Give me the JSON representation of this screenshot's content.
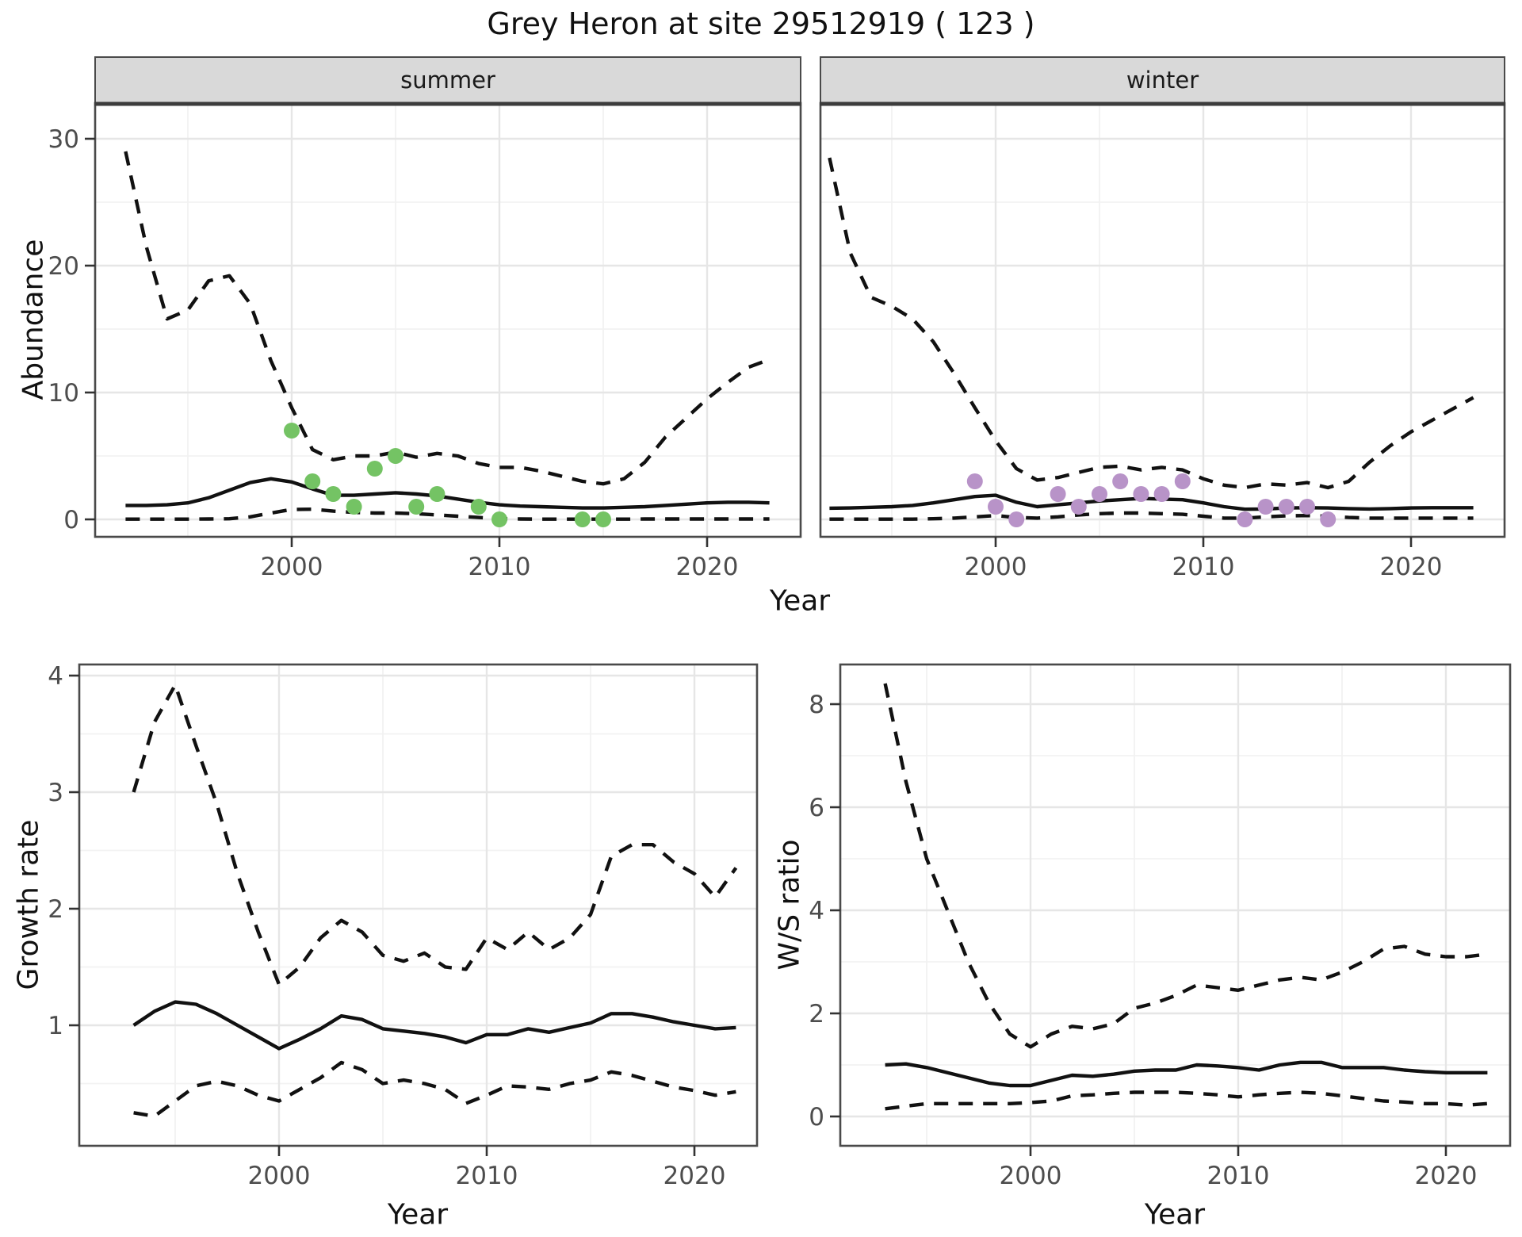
{
  "title": "Grey Heron at site 29512919 ( 123 )",
  "facets": {
    "summer": "summer",
    "winter": "winter"
  },
  "axis_titles": {
    "abundance": "Abundance",
    "year": "Year",
    "growth": "Growth rate",
    "ws": "W/S ratio"
  },
  "colors": {
    "summer_point": "#74C364",
    "winter_point": "#B893C8",
    "line": "#111111",
    "grid_major": "#E6E6E6",
    "grid_minor": "#F2F2F2",
    "panel_border": "#4A4A4A",
    "strip_bg": "#D9D9D9",
    "strip_border": "#4A4A4A",
    "strip_heavy_line": "#3C3C3C",
    "tick_text": "#4D4D4D",
    "tick_mark": "#333333",
    "panel_bg": "#FFFFFF"
  },
  "chart_data": [
    {
      "type": "line",
      "facet": "summer",
      "title": "summer",
      "xlabel": "Year",
      "ylabel": "Abundance",
      "x": [
        1992,
        1993,
        1994,
        1995,
        1996,
        1997,
        1998,
        1999,
        2000,
        2001,
        2002,
        2003,
        2004,
        2005,
        2006,
        2007,
        2008,
        2009,
        2010,
        2011,
        2012,
        2013,
        2014,
        2015,
        2016,
        2017,
        2018,
        2019,
        2020,
        2021,
        2022,
        2023
      ],
      "series": [
        {
          "name": "upper_ci",
          "style": "dashed",
          "values": [
            29,
            21.5,
            15.8,
            16.5,
            18.8,
            19.2,
            17.0,
            12.5,
            8.8,
            5.5,
            4.7,
            5.0,
            5.0,
            5.3,
            4.9,
            5.2,
            5.0,
            4.4,
            4.1,
            4.1,
            3.8,
            3.4,
            3.0,
            2.8,
            3.2,
            4.5,
            6.5,
            8.0,
            9.5,
            10.8,
            12.0,
            12.6
          ]
        },
        {
          "name": "mean",
          "style": "solid",
          "values": [
            1.1,
            1.1,
            1.15,
            1.3,
            1.7,
            2.3,
            2.9,
            3.2,
            2.95,
            2.4,
            1.9,
            1.9,
            2.0,
            2.1,
            2.0,
            1.85,
            1.6,
            1.35,
            1.15,
            1.05,
            1.0,
            0.95,
            0.9,
            0.9,
            0.95,
            1.0,
            1.1,
            1.2,
            1.3,
            1.35,
            1.35,
            1.3
          ]
        },
        {
          "name": "lower_ci",
          "style": "dashed",
          "values": [
            0.02,
            0.02,
            0.02,
            0.02,
            0.03,
            0.05,
            0.2,
            0.5,
            0.78,
            0.8,
            0.65,
            0.55,
            0.5,
            0.5,
            0.45,
            0.35,
            0.25,
            0.15,
            0.05,
            0.03,
            0.02,
            0.02,
            0.02,
            0.02,
            0.02,
            0.03,
            0.03,
            0.03,
            0.03,
            0.03,
            0.03,
            0.03
          ]
        }
      ],
      "points": {
        "name": "observed_counts",
        "color_key": "summer_point",
        "x": [
          2000,
          2001,
          2002,
          2003,
          2004,
          2005,
          2006,
          2007,
          2009,
          2010,
          2014,
          2015
        ],
        "y": [
          7,
          3,
          2,
          1,
          4,
          5,
          1,
          2,
          1,
          0,
          0,
          0
        ]
      },
      "xticks": [
        2000,
        2010,
        2020
      ],
      "xminor": [
        1995,
        2005,
        2015
      ],
      "yticks": [
        0,
        10,
        20,
        30
      ],
      "yminor": [
        5,
        15,
        25
      ],
      "xlim": [
        1990.5,
        2024.5
      ],
      "ylim": [
        -1.4,
        32.8
      ],
      "grid": true
    },
    {
      "type": "line",
      "facet": "winter",
      "title": "winter",
      "xlabel": "Year",
      "ylabel": "Abundance",
      "x": [
        1992,
        1993,
        1994,
        1995,
        1996,
        1997,
        1998,
        1999,
        2000,
        2001,
        2002,
        2003,
        2004,
        2005,
        2006,
        2007,
        2008,
        2009,
        2010,
        2011,
        2012,
        2013,
        2014,
        2015,
        2016,
        2017,
        2018,
        2019,
        2020,
        2021,
        2022,
        2023
      ],
      "series": [
        {
          "name": "upper_ci",
          "style": "dashed",
          "values": [
            28.5,
            21.0,
            17.5,
            16.8,
            15.8,
            14.0,
            11.5,
            8.8,
            6.2,
            4.0,
            3.1,
            3.3,
            3.7,
            4.1,
            4.2,
            3.9,
            4.1,
            3.9,
            3.2,
            2.7,
            2.5,
            2.8,
            2.7,
            2.9,
            2.5,
            3.0,
            4.5,
            5.8,
            6.9,
            7.8,
            8.7,
            9.6
          ]
        },
        {
          "name": "mean",
          "style": "solid",
          "values": [
            0.88,
            0.9,
            0.95,
            1.0,
            1.1,
            1.3,
            1.55,
            1.8,
            1.9,
            1.35,
            1.0,
            1.15,
            1.3,
            1.45,
            1.55,
            1.65,
            1.6,
            1.55,
            1.3,
            1.0,
            0.8,
            0.82,
            0.9,
            0.92,
            0.9,
            0.85,
            0.82,
            0.85,
            0.9,
            0.92,
            0.92,
            0.92
          ]
        },
        {
          "name": "lower_ci",
          "style": "dashed",
          "values": [
            0.02,
            0.02,
            0.02,
            0.02,
            0.02,
            0.05,
            0.1,
            0.2,
            0.3,
            0.15,
            0.1,
            0.2,
            0.35,
            0.45,
            0.5,
            0.5,
            0.45,
            0.4,
            0.25,
            0.1,
            0.1,
            0.2,
            0.28,
            0.3,
            0.25,
            0.15,
            0.1,
            0.1,
            0.1,
            0.1,
            0.1,
            0.1
          ]
        }
      ],
      "points": {
        "name": "observed_counts",
        "color_key": "winter_point",
        "x": [
          1999,
          2000,
          2001,
          2003,
          2004,
          2005,
          2006,
          2007,
          2008,
          2009,
          2012,
          2013,
          2014,
          2015,
          2016
        ],
        "y": [
          3,
          1,
          0,
          2,
          1,
          2,
          3,
          2,
          2,
          3,
          0,
          1,
          1,
          1,
          0
        ]
      },
      "xticks": [
        2000,
        2010,
        2020
      ],
      "xminor": [
        1995,
        2005,
        2015
      ],
      "yticks": [],
      "yminor": [
        5,
        15,
        25
      ],
      "xlim": [
        1991.6,
        2024.5
      ],
      "ylim": [
        -1.4,
        32.8
      ],
      "grid": true
    },
    {
      "type": "line",
      "facet": null,
      "title": "",
      "xlabel": "Year",
      "ylabel": "Growth rate",
      "x": [
        1993,
        1994,
        1995,
        1996,
        1997,
        1998,
        1999,
        2000,
        2001,
        2002,
        2003,
        2004,
        2005,
        2006,
        2007,
        2008,
        2009,
        2010,
        2011,
        2012,
        2013,
        2014,
        2015,
        2016,
        2017,
        2018,
        2019,
        2020,
        2021,
        2022
      ],
      "series": [
        {
          "name": "upper_ci",
          "style": "dashed",
          "values": [
            3.0,
            3.6,
            3.92,
            3.4,
            2.9,
            2.3,
            1.8,
            1.35,
            1.5,
            1.75,
            1.9,
            1.8,
            1.6,
            1.55,
            1.62,
            1.5,
            1.48,
            1.75,
            1.65,
            1.8,
            1.65,
            1.75,
            1.95,
            2.45,
            2.55,
            2.55,
            2.4,
            2.3,
            2.1,
            2.35
          ]
        },
        {
          "name": "mean",
          "style": "solid",
          "values": [
            1.0,
            1.12,
            1.2,
            1.18,
            1.1,
            1.0,
            0.9,
            0.8,
            0.88,
            0.97,
            1.08,
            1.05,
            0.97,
            0.95,
            0.93,
            0.9,
            0.85,
            0.92,
            0.92,
            0.97,
            0.94,
            0.98,
            1.02,
            1.1,
            1.1,
            1.07,
            1.03,
            1.0,
            0.97,
            0.98
          ]
        },
        {
          "name": "lower_ci",
          "style": "dashed",
          "values": [
            0.25,
            0.22,
            0.35,
            0.48,
            0.52,
            0.48,
            0.4,
            0.35,
            0.45,
            0.55,
            0.68,
            0.62,
            0.5,
            0.53,
            0.5,
            0.45,
            0.33,
            0.4,
            0.48,
            0.47,
            0.45,
            0.5,
            0.53,
            0.6,
            0.57,
            0.52,
            0.47,
            0.44,
            0.4,
            0.43
          ]
        }
      ],
      "points": null,
      "xticks": [
        2000,
        2010,
        2020
      ],
      "xminor": [
        1995,
        2005,
        2015
      ],
      "yticks": [
        1,
        2,
        3,
        4
      ],
      "yminor": [
        0.5,
        1.5,
        2.5,
        3.5
      ],
      "xlim": [
        1990.4,
        2023.0
      ],
      "ylim": [
        -0.03,
        4.1
      ],
      "grid": true
    },
    {
      "type": "line",
      "facet": null,
      "title": "",
      "xlabel": "Year",
      "ylabel": "W/S ratio",
      "x": [
        1993,
        1994,
        1995,
        1996,
        1997,
        1998,
        1999,
        2000,
        2001,
        2002,
        2003,
        2004,
        2005,
        2006,
        2007,
        2008,
        2009,
        2010,
        2011,
        2012,
        2013,
        2014,
        2015,
        2016,
        2017,
        2018,
        2019,
        2020,
        2021,
        2022
      ],
      "series": [
        {
          "name": "upper_ci",
          "style": "dashed",
          "values": [
            8.4,
            6.5,
            5.0,
            4.0,
            3.0,
            2.2,
            1.6,
            1.35,
            1.6,
            1.75,
            1.7,
            1.8,
            2.1,
            2.2,
            2.35,
            2.55,
            2.5,
            2.45,
            2.55,
            2.65,
            2.7,
            2.65,
            2.8,
            3.0,
            3.25,
            3.3,
            3.15,
            3.1,
            3.1,
            3.15
          ]
        },
        {
          "name": "mean",
          "style": "solid",
          "values": [
            1.0,
            1.02,
            0.95,
            0.85,
            0.75,
            0.65,
            0.6,
            0.6,
            0.7,
            0.8,
            0.78,
            0.82,
            0.88,
            0.9,
            0.9,
            1.0,
            0.98,
            0.95,
            0.9,
            1.0,
            1.05,
            1.05,
            0.95,
            0.95,
            0.95,
            0.9,
            0.87,
            0.85,
            0.85,
            0.85
          ]
        },
        {
          "name": "lower_ci",
          "style": "dashed",
          "values": [
            0.15,
            0.2,
            0.25,
            0.25,
            0.25,
            0.25,
            0.25,
            0.27,
            0.3,
            0.4,
            0.42,
            0.45,
            0.47,
            0.47,
            0.47,
            0.45,
            0.42,
            0.38,
            0.42,
            0.45,
            0.47,
            0.45,
            0.4,
            0.35,
            0.3,
            0.28,
            0.25,
            0.25,
            0.22,
            0.25
          ]
        }
      ],
      "points": null,
      "xticks": [
        2000,
        2010,
        2020
      ],
      "xminor": [
        1995,
        2005,
        2015
      ],
      "yticks": [
        0,
        2,
        4,
        6,
        8
      ],
      "yminor": [
        1,
        3,
        5,
        7
      ],
      "xlim": [
        1990.8,
        2023.4
      ],
      "ylim": [
        -0.57,
        8.77
      ],
      "grid": true
    }
  ]
}
